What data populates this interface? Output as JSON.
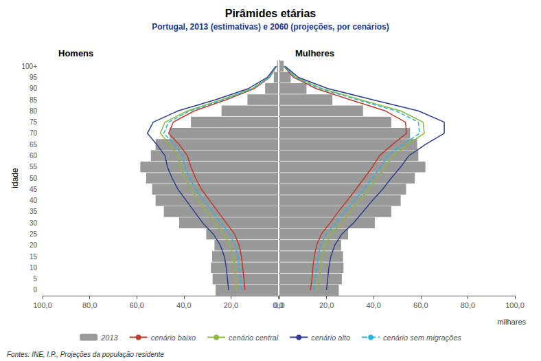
{
  "chart_data": {
    "type": "bar",
    "orientation": "horizontal",
    "title": "Pirâmides etárias",
    "subtitle": "Portugal, 2013 (estimativas) e 2060 (projeções, por cenários)",
    "source": "Fontes: INE, I.P., Projeções da população residente",
    "ylabel": "idade",
    "xlabel": "milhares",
    "grid": false,
    "legend": "bottom",
    "categories": [
      "0",
      "5",
      "10",
      "15",
      "20",
      "25",
      "30",
      "35",
      "40",
      "45",
      "50",
      "55",
      "60",
      "65",
      "70",
      "75",
      "80",
      "85",
      "90",
      "95",
      "100+"
    ],
    "xlim": [
      0,
      100
    ],
    "xticks": [
      {
        "value": 0,
        "label": "0,0"
      },
      {
        "value": 20,
        "label": "20,0"
      },
      {
        "value": 40,
        "label": "40,0"
      },
      {
        "value": 60,
        "label": "60,0"
      },
      {
        "value": 80,
        "label": "80,0"
      },
      {
        "value": 100,
        "label": "100,0"
      }
    ],
    "panels": [
      {
        "title": "Homens",
        "series": [
          {
            "name": "2013",
            "type": "bar",
            "color": "#999999",
            "values": [
              26.5,
              27.8,
              28.5,
              28.0,
              27.0,
              30.5,
              42.0,
              48.5,
              52.0,
              53.5,
              56.0,
              58.5,
              54.0,
              52.0,
              46.0,
              37.0,
              24.0,
              13.0,
              5.5,
              1.8,
              0.4
            ]
          },
          {
            "name": "cenário baixo",
            "type": "line",
            "color": "#c0392b",
            "line_style": "solid",
            "values": [
              14.0,
              14.5,
              15.0,
              15.5,
              16.5,
              18.5,
              22.0,
              25.5,
              29.0,
              32.5,
              35.0,
              37.0,
              38.5,
              42.0,
              46.5,
              44.5,
              35.5,
              22.0,
              10.0,
              3.5,
              0.6
            ]
          },
          {
            "name": "cenário central",
            "type": "line",
            "color": "#8db73f",
            "line_style": "solid",
            "values": [
              17.5,
              18.0,
              18.5,
              19.0,
              20.5,
              23.0,
              27.0,
              30.5,
              33.8,
              37.0,
              39.5,
              41.5,
              42.5,
              46.0,
              50.0,
              48.0,
              38.5,
              24.0,
              11.0,
              3.8,
              0.7
            ]
          },
          {
            "name": "cenário alto",
            "type": "line",
            "color": "#2c3e8c",
            "line_style": "solid",
            "values": [
              21.0,
              21.5,
              22.0,
              22.8,
              24.5,
              27.5,
              32.0,
              35.5,
              39.0,
              42.5,
              45.0,
              47.0,
              48.0,
              51.5,
              55.5,
              53.0,
              42.5,
              26.5,
              12.5,
              4.5,
              0.9
            ]
          },
          {
            "name": "cenário sem migrações",
            "type": "line",
            "color": "#29b6d6",
            "line_style": "dashed",
            "values": [
              15.5,
              16.0,
              16.5,
              17.0,
              18.2,
              20.5,
              24.2,
              27.8,
              31.5,
              35.0,
              37.5,
              39.5,
              40.5,
              44.0,
              48.5,
              46.5,
              37.5,
              23.2,
              10.5,
              3.6,
              0.65
            ]
          }
        ]
      },
      {
        "title": "Mulheres",
        "series": [
          {
            "name": "2013",
            "type": "bar",
            "color": "#999999",
            "values": [
              25.2,
              26.5,
              27.2,
              27.0,
              26.2,
              29.2,
              40.5,
              47.5,
              51.5,
              53.8,
              57.5,
              62.0,
              59.0,
              58.5,
              55.5,
              47.5,
              35.5,
              22.5,
              11.5,
              4.8,
              1.8
            ]
          },
          {
            "name": "cenário baixo",
            "type": "line",
            "color": "#c0392b",
            "line_style": "solid",
            "values": [
              13.2,
              13.8,
              14.2,
              14.8,
              15.8,
              17.8,
              21.5,
              25.0,
              28.8,
              32.5,
              36.0,
              39.5,
              42.5,
              48.0,
              54.0,
              53.5,
              45.0,
              30.0,
              15.5,
              6.0,
              1.8
            ]
          },
          {
            "name": "cenário central",
            "type": "line",
            "color": "#8db73f",
            "line_style": "solid",
            "values": [
              16.5,
              17.0,
              17.5,
              18.2,
              19.5,
              22.0,
              26.5,
              30.2,
              34.0,
              38.0,
              41.5,
              45.0,
              48.2,
              54.5,
              61.5,
              61.0,
              51.5,
              34.5,
              18.0,
              7.0,
              2.0
            ]
          },
          {
            "name": "cenário alto",
            "type": "line",
            "color": "#2c3e8c",
            "line_style": "solid",
            "values": [
              20.0,
              20.5,
              21.0,
              21.8,
              23.5,
              26.5,
              31.5,
              35.5,
              39.5,
              43.8,
              47.5,
              51.5,
              55.0,
              62.0,
              70.0,
              70.0,
              59.0,
              39.5,
              20.5,
              8.0,
              2.3
            ]
          },
          {
            "name": "cenário sem migrações",
            "type": "line",
            "color": "#29b6d6",
            "line_style": "dashed",
            "values": [
              14.8,
              15.2,
              15.8,
              16.4,
              17.5,
              19.8,
              24.0,
              27.8,
              31.8,
              35.8,
              39.5,
              43.0,
              46.0,
              52.5,
              59.5,
              59.0,
              49.5,
              33.0,
              17.0,
              6.5,
              1.9
            ]
          }
        ]
      }
    ]
  }
}
